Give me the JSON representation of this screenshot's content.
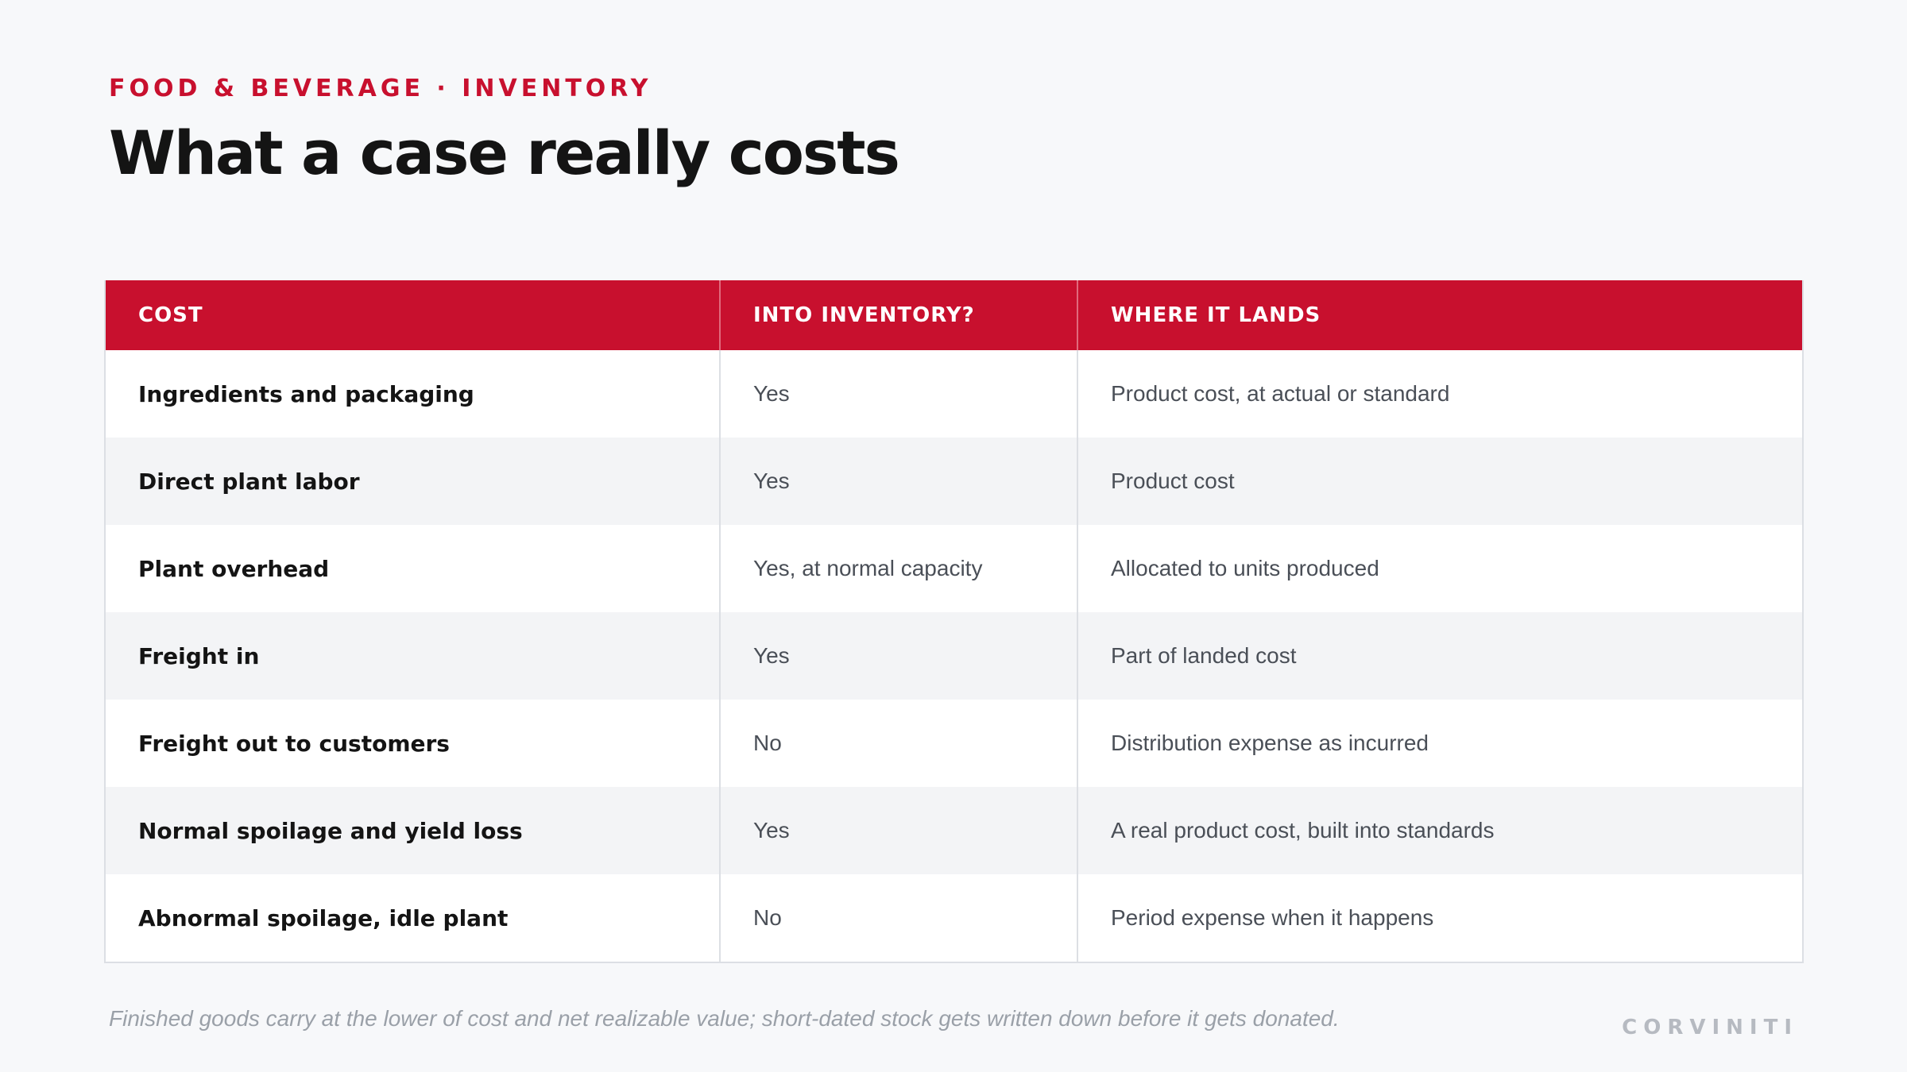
{
  "header": {
    "eyebrow": "FOOD & BEVERAGE · INVENTORY",
    "title": "What a case really costs"
  },
  "table": {
    "columns": [
      "COST",
      "INTO INVENTORY?",
      "WHERE IT LANDS"
    ],
    "rows": [
      [
        "Ingredients and packaging",
        "Yes",
        "Product cost, at actual or standard"
      ],
      [
        "Direct plant labor",
        "Yes",
        "Product cost"
      ],
      [
        "Plant overhead",
        "Yes, at normal capacity",
        "Allocated to units produced"
      ],
      [
        "Freight in",
        "Yes",
        "Part of landed cost"
      ],
      [
        "Freight out to customers",
        "No",
        "Distribution expense as incurred"
      ],
      [
        "Normal spoilage and yield loss",
        "Yes",
        "A real product cost, built into standards"
      ],
      [
        "Abnormal spoilage, idle plant",
        "No",
        "Period expense when it happens"
      ]
    ]
  },
  "footer": {
    "note": "Finished goods carry at the lower of cost and net realizable value; short-dated stock gets written down before it gets donated.",
    "brand": "CORVINITI"
  },
  "colors": {
    "accent": "#c8102e",
    "background": "#f7f8fa",
    "stripe": "#f3f4f6"
  }
}
